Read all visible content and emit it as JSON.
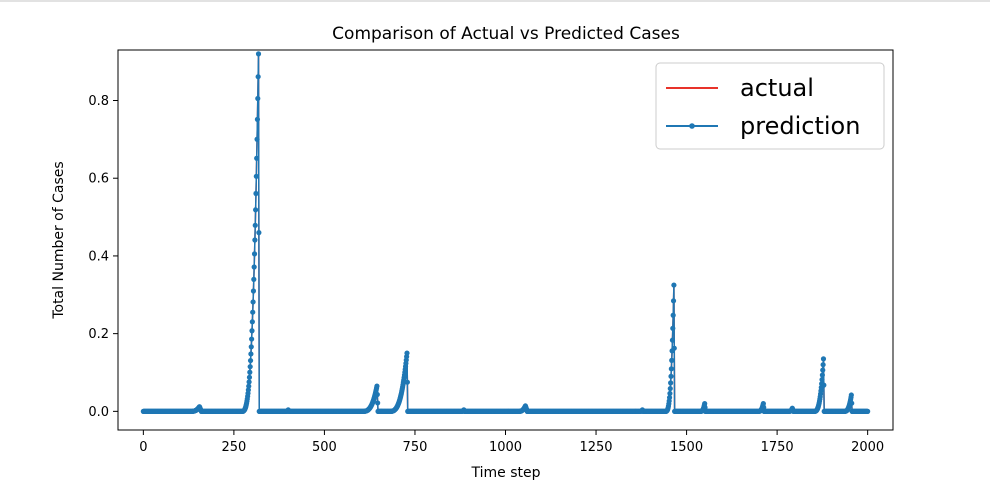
{
  "chart_data": {
    "type": "line",
    "title": "Comparison of Actual vs Predicted Cases",
    "xlabel": "Time step",
    "ylabel": "Total Number of Cases",
    "xlim": [
      -70,
      2070
    ],
    "ylim": [
      -0.048,
      0.93
    ],
    "xticks": [
      0,
      250,
      500,
      750,
      1000,
      1250,
      1500,
      1750,
      2000
    ],
    "yticks": [
      0.0,
      0.2,
      0.4,
      0.6,
      0.8
    ],
    "ytick_labels": [
      "0.0",
      "0.2",
      "0.4",
      "0.6",
      "0.8"
    ],
    "legend_position": "upper-right",
    "grid": false,
    "n_points": 2001,
    "series": [
      {
        "name": "actual",
        "color": "#e8332a",
        "marker": "none",
        "peaks": [
          {
            "start": 130,
            "peak": 155,
            "end": 160,
            "max": 0.012
          },
          {
            "start": 272,
            "peak": 318,
            "end": 320,
            "max": 0.92
          },
          {
            "start": 395,
            "peak": 400,
            "end": 402,
            "max": 0.004
          },
          {
            "start": 605,
            "peak": 645,
            "end": 648,
            "max": 0.065
          },
          {
            "start": 680,
            "peak": 728,
            "end": 730,
            "max": 0.15
          },
          {
            "start": 878,
            "peak": 885,
            "end": 887,
            "max": 0.004
          },
          {
            "start": 1035,
            "peak": 1055,
            "end": 1060,
            "max": 0.014
          },
          {
            "start": 1372,
            "peak": 1378,
            "end": 1380,
            "max": 0.004
          },
          {
            "start": 1442,
            "peak": 1465,
            "end": 1467,
            "max": 0.325
          },
          {
            "start": 1538,
            "peak": 1550,
            "end": 1552,
            "max": 0.02
          },
          {
            "start": 1698,
            "peak": 1712,
            "end": 1714,
            "max": 0.02
          },
          {
            "start": 1782,
            "peak": 1792,
            "end": 1795,
            "max": 0.008
          },
          {
            "start": 1852,
            "peak": 1878,
            "end": 1880,
            "max": 0.135
          },
          {
            "start": 1935,
            "peak": 1955,
            "end": 1957,
            "max": 0.042
          }
        ]
      },
      {
        "name": "prediction",
        "color": "#1f77b4",
        "marker": "point",
        "peaks": [
          {
            "start": 130,
            "peak": 155,
            "end": 160,
            "max": 0.012
          },
          {
            "start": 272,
            "peak": 318,
            "end": 320,
            "max": 0.92
          },
          {
            "start": 395,
            "peak": 400,
            "end": 402,
            "max": 0.004
          },
          {
            "start": 605,
            "peak": 645,
            "end": 648,
            "max": 0.065
          },
          {
            "start": 680,
            "peak": 728,
            "end": 730,
            "max": 0.15
          },
          {
            "start": 878,
            "peak": 885,
            "end": 887,
            "max": 0.004
          },
          {
            "start": 1035,
            "peak": 1055,
            "end": 1060,
            "max": 0.014
          },
          {
            "start": 1372,
            "peak": 1378,
            "end": 1380,
            "max": 0.004
          },
          {
            "start": 1442,
            "peak": 1465,
            "end": 1467,
            "max": 0.325
          },
          {
            "start": 1538,
            "peak": 1550,
            "end": 1552,
            "max": 0.02
          },
          {
            "start": 1698,
            "peak": 1712,
            "end": 1714,
            "max": 0.02
          },
          {
            "start": 1782,
            "peak": 1792,
            "end": 1795,
            "max": 0.008
          },
          {
            "start": 1852,
            "peak": 1878,
            "end": 1880,
            "max": 0.135
          },
          {
            "start": 1935,
            "peak": 1955,
            "end": 1957,
            "max": 0.042
          }
        ]
      }
    ]
  }
}
